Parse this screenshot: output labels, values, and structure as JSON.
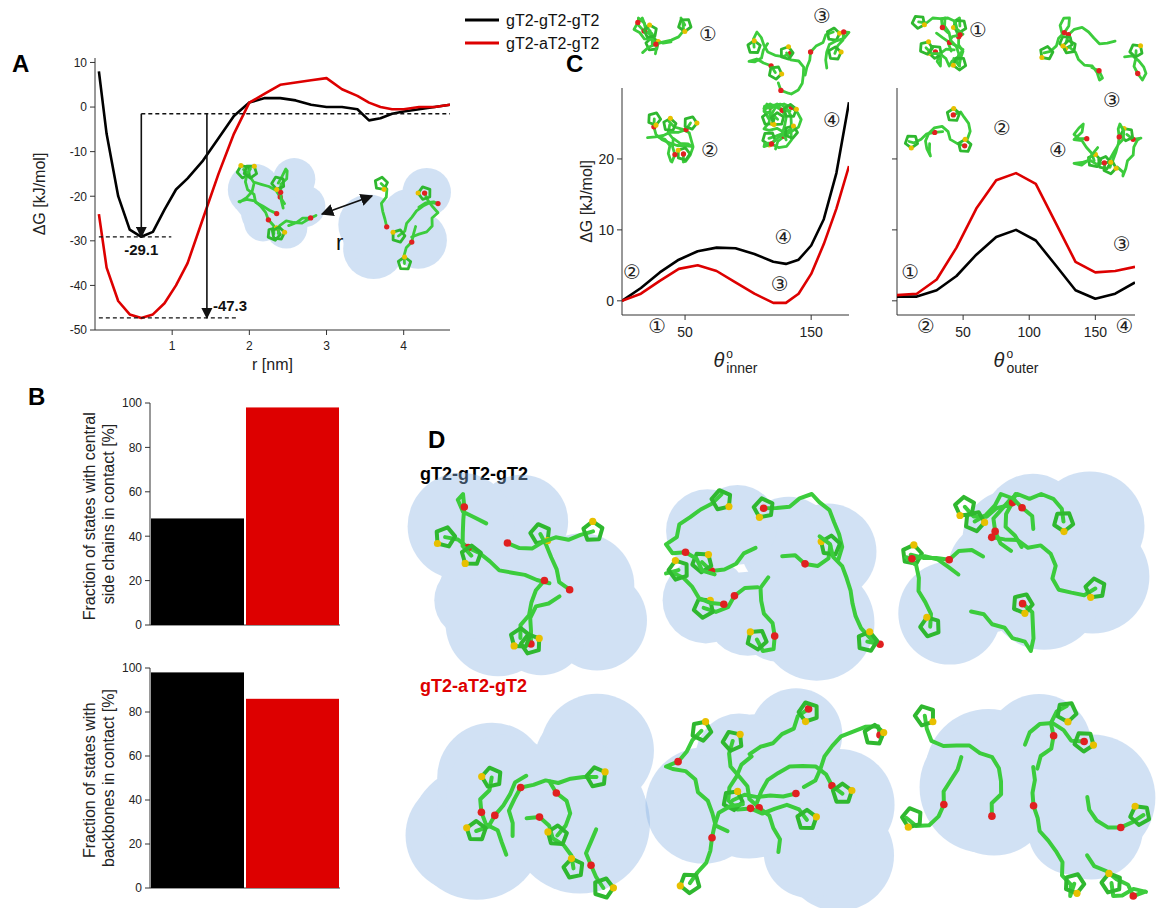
{
  "chart_data": [
    {
      "type": "line",
      "label": "A",
      "xlabel": "r [nm]",
      "ylabel": "ΔG [kJ/mol]",
      "xlim": [
        0,
        4.6
      ],
      "xticks": [
        1,
        2,
        3,
        4
      ],
      "ylim": [
        -50,
        11
      ],
      "yticks": [
        -50,
        -40,
        -30,
        -20,
        -10,
        0,
        10
      ],
      "grid": false,
      "legend": "top",
      "x": [
        0.05,
        0.15,
        0.3,
        0.45,
        0.6,
        0.75,
        0.9,
        1.05,
        1.2,
        1.4,
        1.6,
        1.8,
        2.0,
        2.2,
        2.4,
        2.6,
        2.8,
        3.0,
        3.2,
        3.4,
        3.55,
        3.7,
        3.85,
        4.0,
        4.2,
        4.4,
        4.6
      ],
      "series": [
        {
          "name": "gT2-gT2-gT2",
          "color": "#000000",
          "values": [
            8,
            -6,
            -20,
            -27.5,
            -29.1,
            -28,
            -23,
            -18.5,
            -16,
            -12,
            -7,
            -2,
            1,
            2,
            2,
            1.5,
            0.5,
            0,
            0,
            -0.5,
            -3,
            -2.5,
            -1.5,
            -1,
            -0.5,
            0,
            0.5
          ]
        },
        {
          "name": "gT2-aT2-gT2",
          "color": "#dd0000",
          "values": [
            -24,
            -36,
            -43.5,
            -46.5,
            -47.3,
            -46.5,
            -44,
            -40,
            -35,
            -25,
            -15,
            -6,
            1,
            3,
            5,
            5.5,
            6,
            6.5,
            4,
            2.5,
            1,
            0,
            -0.5,
            -0.5,
            0,
            0,
            0.5
          ]
        }
      ],
      "baseline": -1.5,
      "annotations": [
        {
          "label": "-29.1",
          "value": -29.1,
          "x": 0.6
        },
        {
          "label": "-47.3",
          "value": -47.3,
          "x": 1.45
        }
      ],
      "inset_label": "r"
    },
    {
      "type": "bar",
      "label": "B",
      "ylabel": "Fraction of states with central side chains in contact [%]",
      "categories": [
        null,
        null
      ],
      "values": [
        48,
        98
      ],
      "colors": [
        "#000000",
        "#dd0000"
      ],
      "ylim": [
        0,
        100
      ],
      "yticks": [
        0,
        20,
        40,
        60,
        80,
        100
      ],
      "grid": false,
      "tick_labels": "y"
    },
    {
      "type": "bar",
      "ylabel": "Fraction of states with backbones in contact [%]",
      "categories": [
        null,
        null
      ],
      "values": [
        98,
        86
      ],
      "colors": [
        "#000000",
        "#dd0000"
      ],
      "ylim": [
        0,
        100
      ],
      "yticks": [
        0,
        20,
        40,
        60,
        80,
        100
      ],
      "grid": false,
      "tick_labels": "y"
    },
    {
      "type": "line",
      "label": "C",
      "ylabel": "ΔG [kJ/mol]",
      "xlabel": {
        "symbol": "θ",
        "sup": "o",
        "sub": "inner"
      },
      "xlim": [
        0,
        180
      ],
      "xticks": [
        50,
        150
      ],
      "ylim": [
        -2,
        30
      ],
      "yticks": [
        0,
        10,
        20
      ],
      "grid": false,
      "x": [
        0,
        15,
        30,
        45,
        60,
        75,
        90,
        105,
        120,
        130,
        140,
        150,
        160,
        170,
        180
      ],
      "series": [
        {
          "color": "#000000",
          "values": [
            0,
            1.8,
            4,
            5.8,
            7,
            7.5,
            7.4,
            6.6,
            5.5,
            5.2,
            5.8,
            7.8,
            11.5,
            18,
            28
          ]
        },
        {
          "color": "#dd0000",
          "values": [
            0,
            1,
            2.8,
            4.5,
            5,
            4.2,
            2.6,
            1,
            -0.3,
            -0.3,
            1,
            3.8,
            8,
            13,
            19
          ]
        }
      ],
      "annotations": [
        {
          "label": "①",
          "x": 28,
          "y": -3.5
        },
        {
          "label": "②",
          "x": 8,
          "y": 4
        },
        {
          "label": "③",
          "x": 125,
          "y": 2.4
        },
        {
          "label": "④",
          "x": 128,
          "y": 9
        }
      ]
    },
    {
      "type": "line",
      "xlabel": {
        "symbol": "θ",
        "sup": "o",
        "sub": "outer"
      },
      "xlim": [
        0,
        180
      ],
      "xticks": [
        50,
        100,
        150
      ],
      "ylim": [
        -2,
        30
      ],
      "yticks": [
        0,
        10,
        20
      ],
      "grid": false,
      "tick_labels": "x",
      "x": [
        0,
        15,
        30,
        45,
        60,
        75,
        90,
        105,
        120,
        135,
        150,
        165,
        180
      ],
      "series": [
        {
          "color": "#000000",
          "values": [
            0.6,
            0.6,
            1.5,
            3.5,
            6.5,
            9,
            10,
            8.5,
            5,
            1.5,
            0.3,
            1,
            2.6
          ]
        },
        {
          "color": "#dd0000",
          "values": [
            0.8,
            1,
            3,
            7.5,
            13,
            17,
            18,
            16.5,
            11,
            5.5,
            4,
            4.2,
            4.8
          ]
        }
      ],
      "annotations": [
        {
          "label": "①",
          "x": 10,
          "y": 4
        },
        {
          "label": "②",
          "x": 22,
          "y": -3.5
        },
        {
          "label": "③",
          "x": 170,
          "y": 8
        },
        {
          "label": "④",
          "x": 172,
          "y": -3.5
        }
      ]
    }
  ],
  "panel_d": {
    "label": "D",
    "rows": [
      {
        "title": "gT2-gT2-gT2",
        "color": "#000000"
      },
      {
        "title": "gT2-aT2-gT2",
        "color": "#dd0000"
      }
    ]
  }
}
